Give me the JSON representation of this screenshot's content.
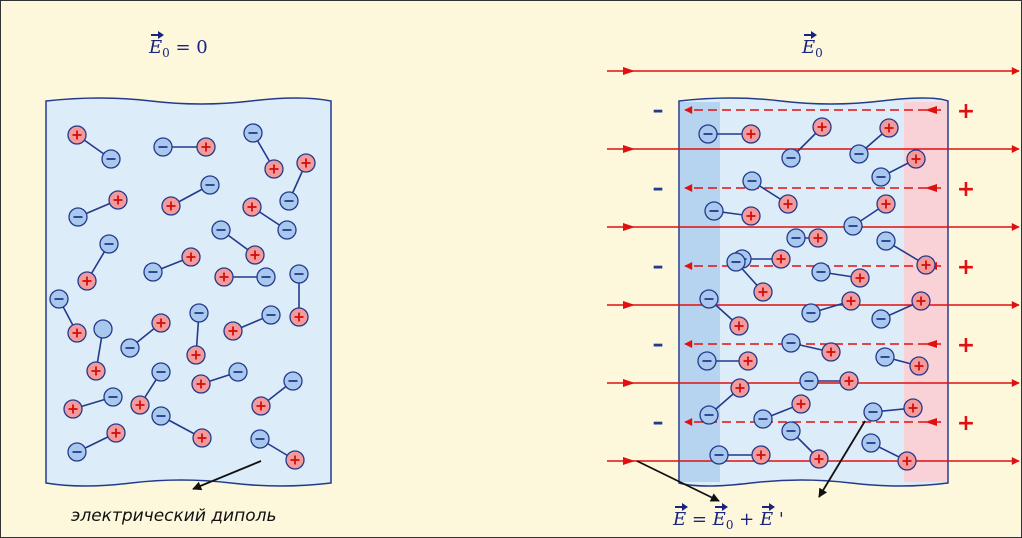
{
  "labels": {
    "left_field_vec": "E",
    "left_field_sub": "0",
    "left_field_eq": " = 0",
    "right_field_vec": "E",
    "right_field_sub": "0",
    "formula_lhs_vec": "E",
    "formula_eq": " = ",
    "formula_e0_vec": "E",
    "formula_e0_sub": "0",
    "formula_plus": " + ",
    "formula_prime_vec": "E",
    "formula_prime": " '",
    "caption": "электрический диполь"
  },
  "symbols": {
    "plus": "+",
    "minus": "–"
  },
  "colors": {
    "background": "#fdf8dc",
    "slab_fill": "#dcecf8",
    "slab_stroke": "#243a8c",
    "negative_charge": "#a8c8ee",
    "positive_charge": "#f49a9a",
    "field_line": "#e01010",
    "bound_negative_layer": "#b6d4ef",
    "bound_positive_layer": "#f8d2d6",
    "text_navy": "#1a237e"
  },
  "icons": [
    "dipole-icon",
    "field-arrow-icon",
    "pointer-arrow-icon"
  ]
}
